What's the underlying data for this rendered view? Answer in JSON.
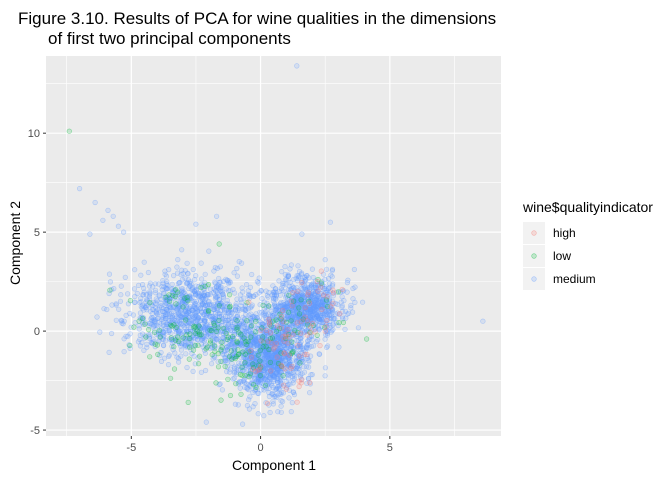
{
  "chart_data": {
    "type": "scatter",
    "title_line1": "Figure 3.10. Results of PCA for wine qualities in the dimensions",
    "title_line2": "of first two principal components",
    "xlabel": "Component 1",
    "ylabel": "Component 2",
    "xlim": [
      -8.3,
      9.3
    ],
    "ylim": [
      -5.3,
      13.9
    ],
    "x_ticks": [
      -5,
      0,
      5
    ],
    "y_ticks": [
      -5,
      0,
      5,
      10
    ],
    "grid": true,
    "panel_background": "#EBEBEB",
    "legend": {
      "title": "wine$qualityindicator",
      "placement": "right",
      "entries": [
        "high",
        "low",
        "medium"
      ]
    },
    "series": [
      {
        "name": "medium",
        "color": "#619CFF",
        "clusters": [
          {
            "cx": -2.8,
            "cy": 0.9,
            "sx": 1.3,
            "sy": 1.1,
            "n": 900
          },
          {
            "cx": 0.3,
            "cy": -1.3,
            "sx": 0.7,
            "sy": 1.0,
            "n": 1000
          },
          {
            "cx": 1.8,
            "cy": 1.2,
            "sx": 0.7,
            "sy": 0.8,
            "n": 750
          },
          {
            "cx": -0.8,
            "cy": 0.0,
            "sx": 1.2,
            "sy": 1.2,
            "n": 300
          }
        ],
        "points": [
          {
            "x": 1.4,
            "y": 13.4
          },
          {
            "x": -7.0,
            "y": 7.2
          },
          {
            "x": -6.4,
            "y": 6.5
          },
          {
            "x": -5.9,
            "y": 6.1
          },
          {
            "x": -6.1,
            "y": 5.6
          },
          {
            "x": -5.7,
            "y": 5.8
          },
          {
            "x": -5.5,
            "y": 5.3
          },
          {
            "x": -6.6,
            "y": 4.9
          },
          {
            "x": -5.3,
            "y": 5.0
          },
          {
            "x": -2.5,
            "y": 5.4
          },
          {
            "x": -1.7,
            "y": 5.8
          },
          {
            "x": 2.7,
            "y": 5.5
          },
          {
            "x": 1.6,
            "y": 4.9
          },
          {
            "x": 8.6,
            "y": 0.5
          },
          {
            "x": -2.1,
            "y": -4.6
          },
          {
            "x": 0.8,
            "y": -4.1
          }
        ]
      },
      {
        "name": "low",
        "color": "#00BA38",
        "clusters": [
          {
            "cx": -2.5,
            "cy": 0.2,
            "sx": 1.2,
            "sy": 1.1,
            "n": 90
          },
          {
            "cx": -0.6,
            "cy": -1.2,
            "sx": 0.9,
            "sy": 0.9,
            "n": 70
          },
          {
            "cx": 1.5,
            "cy": 0.5,
            "sx": 1.0,
            "sy": 1.0,
            "n": 40
          }
        ],
        "points": [
          {
            "x": -7.4,
            "y": 10.1
          },
          {
            "x": -4.9,
            "y": 0.2
          },
          {
            "x": -1.6,
            "y": 4.4
          },
          {
            "x": -2.8,
            "y": -3.6
          },
          {
            "x": 4.1,
            "y": -0.4
          }
        ]
      },
      {
        "name": "high",
        "color": "#F8766D",
        "clusters": [
          {
            "cx": 0.7,
            "cy": -1.3,
            "sx": 0.8,
            "sy": 1.1,
            "n": 60
          },
          {
            "cx": 2.0,
            "cy": 1.1,
            "sx": 0.6,
            "sy": 0.8,
            "n": 30
          }
        ],
        "points": [
          {
            "x": 1.9,
            "y": -2.6
          },
          {
            "x": 2.2,
            "y": 2.5
          }
        ]
      }
    ]
  }
}
